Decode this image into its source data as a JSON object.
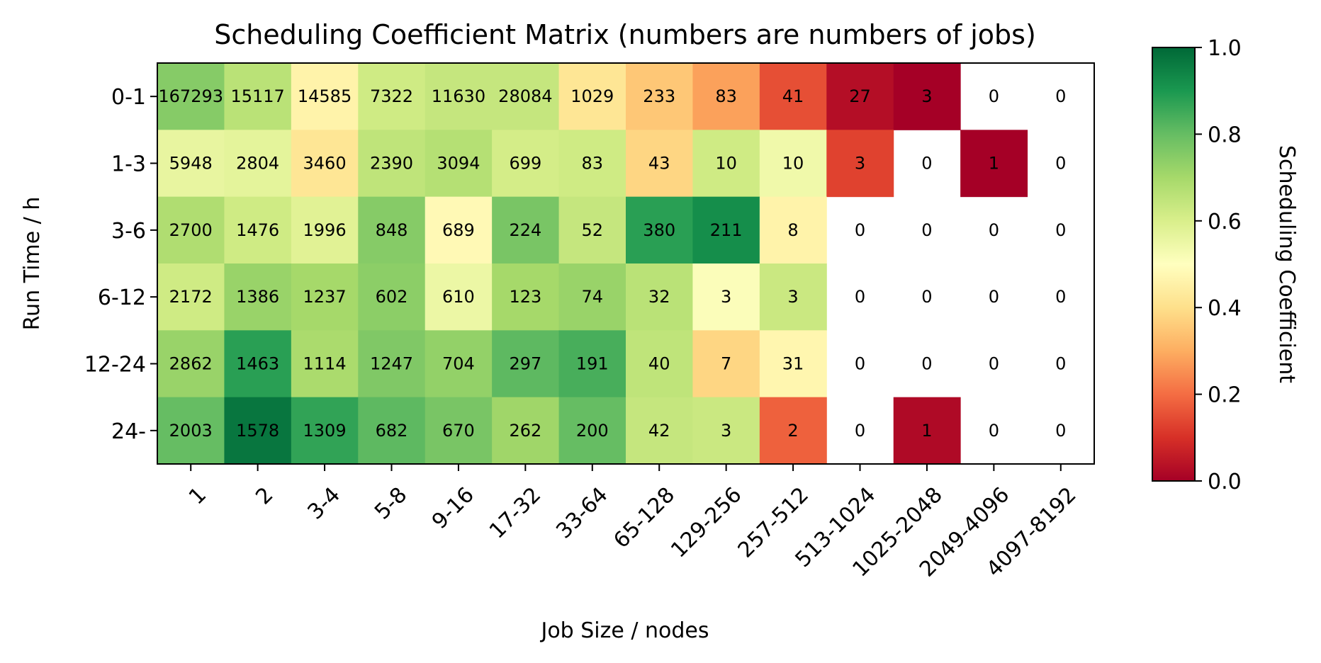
{
  "chart_data": {
    "type": "heatmap",
    "title": "Scheduling Coefficient Matrix (numbers are numbers of jobs)",
    "xlabel": "Job Size / nodes",
    "ylabel": "Run Time / h",
    "x_categories": [
      "1",
      "2",
      "3-4",
      "5-8",
      "9-16",
      "17-32",
      "33-64",
      "65-128",
      "129-256",
      "257-512",
      "513-1024",
      "1025-2048",
      "2049-4096",
      "4097-8192"
    ],
    "y_categories": [
      "0-1",
      "1-3",
      "3-6",
      "6-12",
      "12-24",
      "24-"
    ],
    "counts": [
      [
        167293,
        15117,
        14585,
        7322,
        11630,
        28084,
        1029,
        233,
        83,
        41,
        27,
        3,
        0,
        0
      ],
      [
        5948,
        2804,
        3460,
        2390,
        3094,
        699,
        83,
        43,
        10,
        10,
        3,
        0,
        1,
        0
      ],
      [
        2700,
        1476,
        1996,
        848,
        689,
        224,
        52,
        380,
        211,
        8,
        0,
        0,
        0,
        0
      ],
      [
        2172,
        1386,
        1237,
        602,
        610,
        123,
        74,
        32,
        3,
        3,
        0,
        0,
        0,
        0
      ],
      [
        2862,
        1463,
        1114,
        1247,
        704,
        297,
        191,
        40,
        7,
        31,
        0,
        0,
        0,
        0
      ],
      [
        2003,
        1578,
        1309,
        682,
        670,
        262,
        200,
        42,
        3,
        2,
        0,
        1,
        0,
        0
      ]
    ],
    "coefficients": [
      [
        0.75,
        0.66,
        0.46,
        0.62,
        0.64,
        0.64,
        0.42,
        0.35,
        0.28,
        0.15,
        0.03,
        0.0,
        null,
        null
      ],
      [
        0.56,
        0.57,
        0.42,
        0.65,
        0.67,
        0.61,
        0.62,
        0.38,
        0.62,
        0.54,
        0.13,
        null,
        0.0,
        null
      ],
      [
        0.68,
        0.62,
        0.58,
        0.75,
        0.48,
        0.77,
        0.64,
        0.88,
        0.92,
        0.46,
        null,
        null,
        null,
        null
      ],
      [
        0.62,
        0.72,
        0.7,
        0.74,
        0.55,
        0.7,
        0.72,
        0.66,
        0.51,
        0.63,
        null,
        null,
        null,
        null
      ],
      [
        0.72,
        0.88,
        0.69,
        0.76,
        0.73,
        0.81,
        0.84,
        0.65,
        0.38,
        0.47,
        null,
        null,
        null,
        null
      ],
      [
        0.8,
        0.97,
        0.87,
        0.81,
        0.77,
        0.71,
        0.8,
        0.64,
        0.63,
        0.18,
        null,
        0.02,
        null,
        null
      ]
    ],
    "colorbar": {
      "label": "Scheduling Coefficient",
      "colormap": "RdYlGn",
      "range": [
        0.0,
        1.0
      ],
      "ticks": [
        "0.0",
        "0.2",
        "0.4",
        "0.6",
        "0.8",
        "1.0"
      ]
    }
  }
}
